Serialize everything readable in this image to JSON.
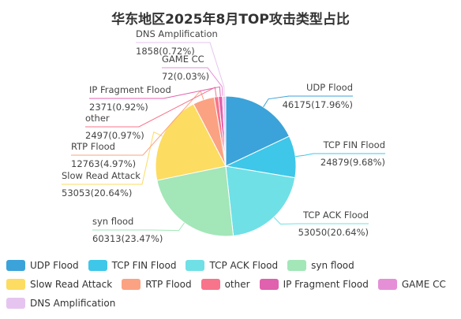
{
  "chart_data": {
    "type": "pie",
    "title": "华东地区2025年8月TOP攻击类型占比",
    "slices": [
      {
        "name": "UDP Flood",
        "value": 46175,
        "percent": "17.96%",
        "color": "#3ba3d9"
      },
      {
        "name": "TCP FIN Flood",
        "value": 24879,
        "percent": "9.68%",
        "color": "#3ec7e9"
      },
      {
        "name": "TCP ACK Flood",
        "value": 53050,
        "percent": "20.64%",
        "color": "#6fe0e6"
      },
      {
        "name": "syn flood",
        "value": 60313,
        "percent": "23.47%",
        "color": "#a3e6b8"
      },
      {
        "name": "Slow Read Attack",
        "value": 53053,
        "percent": "20.64%",
        "color": "#fcdc61"
      },
      {
        "name": "RTP Flood",
        "value": 12763,
        "percent": "4.97%",
        "color": "#fba282"
      },
      {
        "name": "other",
        "value": 2497,
        "percent": "0.97%",
        "color": "#f7748a"
      },
      {
        "name": "IP Fragment Flood",
        "value": 2371,
        "percent": "0.92%",
        "color": "#e061ad"
      },
      {
        "name": "GAME CC",
        "value": 72,
        "percent": "0.03%",
        "color": "#e58fd6"
      },
      {
        "name": "DNS Amplification",
        "value": 1858,
        "percent": "0.72%",
        "color": "#e6c4f0"
      }
    ],
    "legend_position": "bottom"
  }
}
